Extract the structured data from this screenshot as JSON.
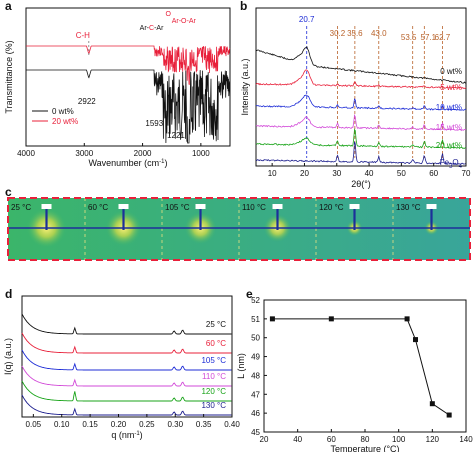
{
  "panels": {
    "a": {
      "letter": "a",
      "xlabel": "Wavenumber (cm",
      "xlabel_sup": "-1",
      "xlabel_end": ")",
      "ylabel": "Transmittance (%)",
      "xticks": [
        "4000",
        "3000",
        "2000",
        "1000"
      ],
      "annotations": {
        "ch": "C-H",
        "aroar_o": "O",
        "aroar_pre": "Ar-",
        "aroar_o2": "O",
        "aroar_post": "-Ar",
        "arcar_pre": "Ar-",
        "arcar_c": "C",
        "arcar_post": "-Ar",
        "p2922": "2922",
        "p1593": "1593",
        "p1221": "1221"
      },
      "legend": [
        "0 wt%",
        "20 wt%"
      ]
    },
    "b": {
      "letter": "b",
      "xlabel": "2θ(°)",
      "ylabel": "Intensity (a.u.)",
      "xticks": [
        "10",
        "20",
        "30",
        "40",
        "50",
        "60",
        "70"
      ],
      "peaks": [
        "20.7",
        "30.2",
        "35.6",
        "43.0",
        "53.5",
        "57.1",
        "62.7"
      ],
      "series": [
        "0 wt%",
        "5 wt%",
        "10 wt%",
        "15 wt%",
        "20 wt%"
      ],
      "fe_label": "Fe",
      "fe_sub3": "3",
      "fe_o": "O",
      "fe_sub4": "4"
    },
    "c": {
      "letter": "c",
      "temps": [
        "25 °C",
        "60 °C",
        "105 °C",
        "110 °C",
        "120 °C",
        "130 °C"
      ]
    },
    "d": {
      "letter": "d",
      "xlabel": "q (nm",
      "xlabel_sup": "-1",
      "xlabel_end": ")",
      "ylabel": "I(q) (a.u.)",
      "xticks": [
        "0.05",
        "0.10",
        "0.15",
        "0.20",
        "0.25",
        "0.30",
        "0.35",
        "0.40"
      ],
      "series": [
        "25 °C",
        "60 °C",
        "105 °C",
        "110 °C",
        "120 °C",
        "130 °C"
      ]
    },
    "e": {
      "letter": "e",
      "xlabel": "Temperature (°C)",
      "ylabel": "L (nm)",
      "xticks": [
        "20",
        "40",
        "60",
        "80",
        "100",
        "120",
        "140"
      ],
      "yticks": [
        "45",
        "46",
        "47",
        "48",
        "49",
        "50",
        "51",
        "52"
      ]
    }
  },
  "colors": {
    "red": "#e8203a",
    "black": "#111111",
    "blue": "#1c2bd6",
    "magenta": "#d24ad8",
    "green": "#18a318",
    "navy": "#1c1e8e",
    "peakline": "#b8622a",
    "dashbox": "#e8203a"
  },
  "chart_data": [
    {
      "type": "line",
      "panel": "a",
      "xlabel": "Wavenumber (cm-1)",
      "ylabel": "Transmittance (%)",
      "xlim": [
        4000,
        500
      ],
      "series": [
        {
          "name": "0 wt%",
          "x": [
            4000,
            3500,
            3000,
            2922,
            2500,
            2000,
            1800,
            1593,
            1500,
            1400,
            1221,
            1100,
            900,
            700,
            500
          ],
          "y": [
            0.62,
            0.63,
            0.61,
            0.52,
            0.63,
            0.62,
            0.58,
            0.15,
            0.25,
            0.1,
            0.02,
            0.35,
            0.45,
            0.4,
            0.5
          ]
        },
        {
          "name": "20 wt%",
          "x": [
            4000,
            3500,
            3000,
            2922,
            2500,
            2000,
            1800,
            1593,
            1500,
            1400,
            1221,
            1100,
            900,
            700,
            500
          ],
          "y": [
            0.86,
            0.86,
            0.85,
            0.8,
            0.86,
            0.86,
            0.84,
            0.62,
            0.66,
            0.6,
            0.55,
            0.7,
            0.74,
            0.72,
            0.76
          ]
        }
      ],
      "annotations": [
        "C-H",
        "Ar-O-Ar",
        "Ar-C-Ar",
        "2922",
        "1593",
        "1221"
      ]
    },
    {
      "type": "line",
      "panel": "b",
      "xlabel": "2θ(°)",
      "ylabel": "Intensity (a.u.)",
      "xlim": [
        5,
        70
      ],
      "peak_positions": [
        20.7,
        30.2,
        35.6,
        43.0,
        53.5,
        57.1,
        62.7
      ],
      "series": [
        {
          "name": "0 wt%"
        },
        {
          "name": "5 wt%"
        },
        {
          "name": "10 wt%"
        },
        {
          "name": "15 wt%"
        },
        {
          "name": "20 wt%"
        },
        {
          "name": "Fe3O4"
        }
      ]
    },
    {
      "type": "line",
      "panel": "d",
      "xlabel": "q (nm-1)",
      "ylabel": "I(q) (a.u.)",
      "xlim": [
        0.03,
        0.4
      ],
      "peak_positions": [
        0.123,
        0.298,
        0.313
      ],
      "series": [
        {
          "name": "25 °C"
        },
        {
          "name": "60 °C"
        },
        {
          "name": "105 °C"
        },
        {
          "name": "110 °C"
        },
        {
          "name": "120 °C"
        },
        {
          "name": "130 °C"
        }
      ]
    },
    {
      "type": "scatter",
      "panel": "e",
      "xlabel": "Temperature (°C)",
      "ylabel": "L (nm)",
      "xlim": [
        20,
        140
      ],
      "ylim": [
        45,
        52
      ],
      "x": [
        25,
        60,
        105,
        110,
        120,
        130
      ],
      "y": [
        51.0,
        51.0,
        51.0,
        49.9,
        46.5,
        45.9
      ]
    }
  ]
}
